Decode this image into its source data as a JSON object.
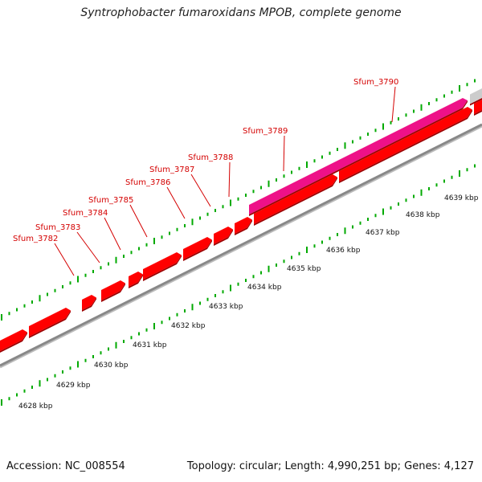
{
  "title": "Syntrophobacter fumaroxidans MPOB, complete genome",
  "footer": {
    "accession": "Accession: NC_008554",
    "summary": "Topology: circular; Length: 4,990,251 bp; Genes: 4,127"
  },
  "colors": {
    "gene_red": "#ff0000",
    "gene_pink": "#ee1188",
    "gene_gray": "#cccccc",
    "backbone": "#888888",
    "tick_green": "#00aa00",
    "label_red": "#d40000"
  },
  "gene_labels": [
    "Sfum_3782",
    "Sfum_3783",
    "Sfum_3784",
    "Sfum_3785",
    "Sfum_3786",
    "Sfum_3787",
    "Sfum_3788",
    "Sfum_3789",
    "Sfum_3790"
  ],
  "kbp_labels": [
    "4628 kbp",
    "4629 kbp",
    "4630 kbp",
    "4631 kbp",
    "4632 kbp",
    "4633 kbp",
    "4634 kbp",
    "4635 kbp",
    "4636 kbp",
    "4637 kbp",
    "4638 kbp",
    "4639 kbp"
  ]
}
